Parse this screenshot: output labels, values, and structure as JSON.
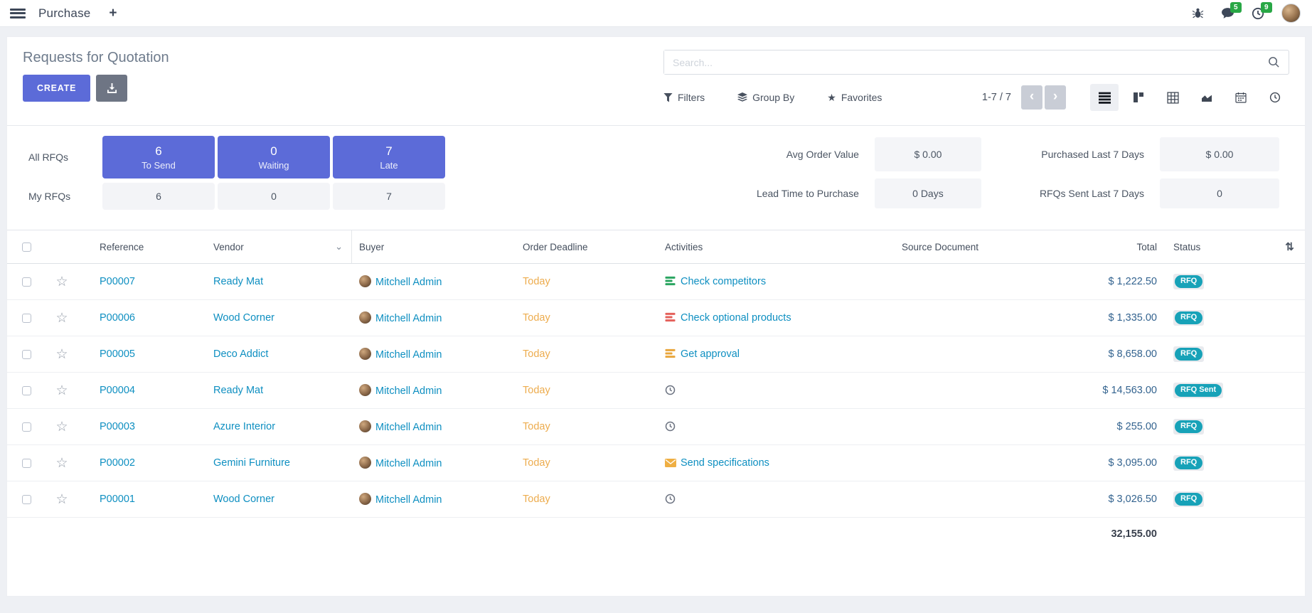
{
  "colors": {
    "accent": "#5c6bd8",
    "link": "#0e8fc1",
    "warning": "#edac4e",
    "badge_teal": "#17a2b8",
    "badge_green": "#28a745",
    "page_bg": "#eef0f4",
    "activity_green": "#2ba561",
    "activity_red": "#e4615b",
    "activity_orange": "#e9a63c",
    "activity_clock_gray": "#6b7280"
  },
  "navbar": {
    "app_name": "Purchase",
    "plus": "+",
    "messages_badge": "5",
    "activities_badge": "9"
  },
  "control": {
    "title": "Requests for Quotation",
    "create_label": "CREATE",
    "search_placeholder": "Search...",
    "filters_label": "Filters",
    "group_by_label": "Group By",
    "favorites_label": "Favorites",
    "favorites_star": "★",
    "pager_text": "1-7 / 7",
    "prev": "‹",
    "next": "›",
    "views": [
      {
        "name": "list-view-icon",
        "type": "list",
        "active": true
      },
      {
        "name": "kanban-view-icon",
        "type": "kanban",
        "active": false
      },
      {
        "name": "pivot-view-icon",
        "type": "pivot",
        "active": false
      },
      {
        "name": "graph-view-icon",
        "type": "graph",
        "active": false
      },
      {
        "name": "calendar-view-icon",
        "type": "calendar",
        "active": false
      },
      {
        "name": "activity-view-icon",
        "type": "activity",
        "active": false
      }
    ]
  },
  "dashboard": {
    "all_rfqs_label": "All RFQs",
    "my_rfqs_label": "My RFQs",
    "tiles": [
      {
        "label": "To Send",
        "all": "6",
        "my": "6"
      },
      {
        "label": "Waiting",
        "all": "0",
        "my": "0"
      },
      {
        "label": "Late",
        "all": "7",
        "my": "7"
      }
    ],
    "kpis_row1": [
      {
        "label": "Avg Order Value",
        "value": "$ 0.00"
      },
      {
        "label": "Purchased Last 7 Days",
        "value": "$ 0.00"
      }
    ],
    "kpis_row2": [
      {
        "label": "Lead Time to Purchase",
        "value": "0 Days"
      },
      {
        "label": "RFQs Sent Last 7 Days",
        "value": "0"
      }
    ]
  },
  "table": {
    "headers": {
      "reference": "Reference",
      "vendor": "Vendor",
      "vendor_sort": "⌄",
      "buyer": "Buyer",
      "deadline": "Order Deadline",
      "activities": "Activities",
      "source": "Source Document",
      "total": "Total",
      "status": "Status",
      "optional_columns": "⇅"
    },
    "star_glyph": "☆",
    "rows": [
      {
        "reference": "P00007",
        "vendor": "Ready Mat",
        "buyer": "Mitchell Admin",
        "deadline": "Today",
        "activity": {
          "icon": "tasks",
          "color": "#2ba561",
          "label": "Check competitors"
        },
        "source": "",
        "total": "$ 1,222.50",
        "status": "RFQ"
      },
      {
        "reference": "P00006",
        "vendor": "Wood Corner",
        "buyer": "Mitchell Admin",
        "deadline": "Today",
        "activity": {
          "icon": "tasks",
          "color": "#e4615b",
          "label": "Check optional products"
        },
        "source": "",
        "total": "$ 1,335.00",
        "status": "RFQ"
      },
      {
        "reference": "P00005",
        "vendor": "Deco Addict",
        "buyer": "Mitchell Admin",
        "deadline": "Today",
        "activity": {
          "icon": "tasks",
          "color": "#e9a63c",
          "label": "Get approval"
        },
        "source": "",
        "total": "$ 8,658.00",
        "status": "RFQ"
      },
      {
        "reference": "P00004",
        "vendor": "Ready Mat",
        "buyer": "Mitchell Admin",
        "deadline": "Today",
        "activity": {
          "icon": "clock",
          "color": "#6b7280",
          "label": ""
        },
        "source": "",
        "total": "$ 14,563.00",
        "status": "RFQ Sent"
      },
      {
        "reference": "P00003",
        "vendor": "Azure Interior",
        "buyer": "Mitchell Admin",
        "deadline": "Today",
        "activity": {
          "icon": "clock",
          "color": "#6b7280",
          "label": ""
        },
        "source": "",
        "total": "$ 255.00",
        "status": "RFQ"
      },
      {
        "reference": "P00002",
        "vendor": "Gemini Furniture",
        "buyer": "Mitchell Admin",
        "deadline": "Today",
        "activity": {
          "icon": "envelope",
          "color": "#efaf43",
          "label": "Send specifications"
        },
        "source": "",
        "total": "$ 3,095.00",
        "status": "RFQ"
      },
      {
        "reference": "P00001",
        "vendor": "Wood Corner",
        "buyer": "Mitchell Admin",
        "deadline": "Today",
        "activity": {
          "icon": "clock",
          "color": "#6b7280",
          "label": ""
        },
        "source": "",
        "total": "$ 3,026.50",
        "status": "RFQ"
      }
    ],
    "footer_total": "32,155.00"
  }
}
